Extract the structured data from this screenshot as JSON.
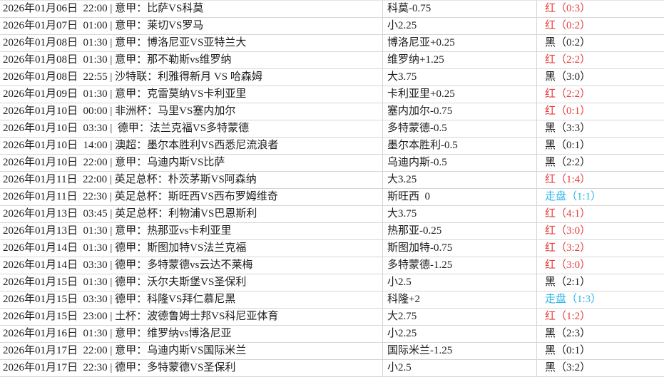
{
  "table": {
    "description_columns": [
      "match_info",
      "handicap",
      "result"
    ],
    "result_colors": {
      "red": "#e63c3c",
      "black": "#1d1d1d",
      "push": "#2ab5e8"
    },
    "grid_color": "#d6d6d6",
    "rows": [
      {
        "info": "2026年01月06日  22:00 | 意甲：比萨VS科莫",
        "handicap": "科莫-0.75",
        "result": "红（0:3）",
        "result_type": "red"
      },
      {
        "info": "2026年01月07日  01:00 | 意甲：莱切VS罗马",
        "handicap": "小2.25",
        "result": "红（0:2）",
        "result_type": "red"
      },
      {
        "info": "2026年01月08日  01:30 | 意甲：博洛尼亚VS亚特兰大",
        "handicap": "博洛尼亚+0.25",
        "result": "黑（0:2）",
        "result_type": "black"
      },
      {
        "info": "2026年01月08日  01:30 | 意甲：那不勒斯vs维罗纳",
        "handicap": "维罗纳+1.25",
        "result": "红（2:2）",
        "result_type": "red"
      },
      {
        "info": "2026年01月08日  22:55 | 沙特联：利雅得新月 VS 哈森姆",
        "handicap": "大3.75",
        "result": "黑（3:0）",
        "result_type": "black"
      },
      {
        "info": "2026年01月09日  01:30 | 意甲：克雷莫纳VS卡利亚里",
        "handicap": "卡利亚里+0.25",
        "result": "红（2:2）",
        "result_type": "red"
      },
      {
        "info": "2026年01月10日  00:00 | 非洲杯：马里VS塞内加尔",
        "handicap": "塞内加尔-0.75",
        "result": "红（0:1）",
        "result_type": "red"
      },
      {
        "info": "2026年01月10日  03:30 |  德甲：法兰克福VS多特蒙德",
        "handicap": "多特蒙德-0.5",
        "result": "黑（3:3）",
        "result_type": "black"
      },
      {
        "info": "2026年01月10日  14:00 | 澳超：墨尔本胜利VS西悉尼流浪者",
        "handicap": "墨尔本胜利-0.5",
        "result": "黑（0:1）",
        "result_type": "black"
      },
      {
        "info": "2026年01月10日  22:00 | 意甲：乌迪内斯VS比萨",
        "handicap": "乌迪内斯-0.5",
        "result": "黑（2:2）",
        "result_type": "black"
      },
      {
        "info": "2026年01月11日  22:00 | 英足总杯：朴茨茅斯VS阿森纳",
        "handicap": "大3.25",
        "result": "红（1:4）",
        "result_type": "red"
      },
      {
        "info": "2026年01月11日  22:30 | 英足总杯：斯旺西VS西布罗姆维奇",
        "handicap": "斯旺西  0",
        "result": "走盘（1:1）",
        "result_type": "push"
      },
      {
        "info": "2026年01月13日  03:45 | 英足总杯：利物浦VS巴恩斯利",
        "handicap": "大3.75",
        "result": "红（4:1）",
        "result_type": "red"
      },
      {
        "info": "2026年01月13日  01:30 | 意甲：热那亚vs卡利亚里",
        "handicap": "热那亚-0.25",
        "result": "红（3:0）",
        "result_type": "red"
      },
      {
        "info": "2026年01月14日  01:30 | 德甲：斯图加特VS法兰克福",
        "handicap": "斯图加特-0.75",
        "result": "红（3:2）",
        "result_type": "red"
      },
      {
        "info": "2026年01月14日  03:30 | 德甲：多特蒙德vs云达不莱梅",
        "handicap": "多特蒙德-1.25",
        "result": "红（3:0）",
        "result_type": "red"
      },
      {
        "info": "2026年01月15日  01:30 | 德甲：沃尔夫斯堡VS圣保利",
        "handicap": "小2.5",
        "result": "黑（2:1）",
        "result_type": "black"
      },
      {
        "info": "2026年01月15日  03:30 | 德甲：科隆VS拜仁慕尼黑",
        "handicap": "科隆+2",
        "result": "走盘（1:3）",
        "result_type": "push"
      },
      {
        "info": "2026年01月15日  23:00 | 土杯：波德鲁姆士邦VS科尼亚体育",
        "handicap": "大2.75",
        "result": "红（1:2）",
        "result_type": "red"
      },
      {
        "info": "2026年01月16日  01:30 | 意甲：维罗纳vs博洛尼亚",
        "handicap": "小2.25",
        "result": "黑（2:3）",
        "result_type": "black"
      },
      {
        "info": "2026年01月17日  22:00 | 意甲：乌迪内斯VS国际米兰",
        "handicap": "国际米兰-1.25",
        "result": "黑（0:1）",
        "result_type": "black"
      },
      {
        "info": "2026年01月17日  22:30 | 德甲：多特蒙德VS圣保利",
        "handicap": "小2.5",
        "result": "黑（3:2）",
        "result_type": "black"
      }
    ]
  }
}
